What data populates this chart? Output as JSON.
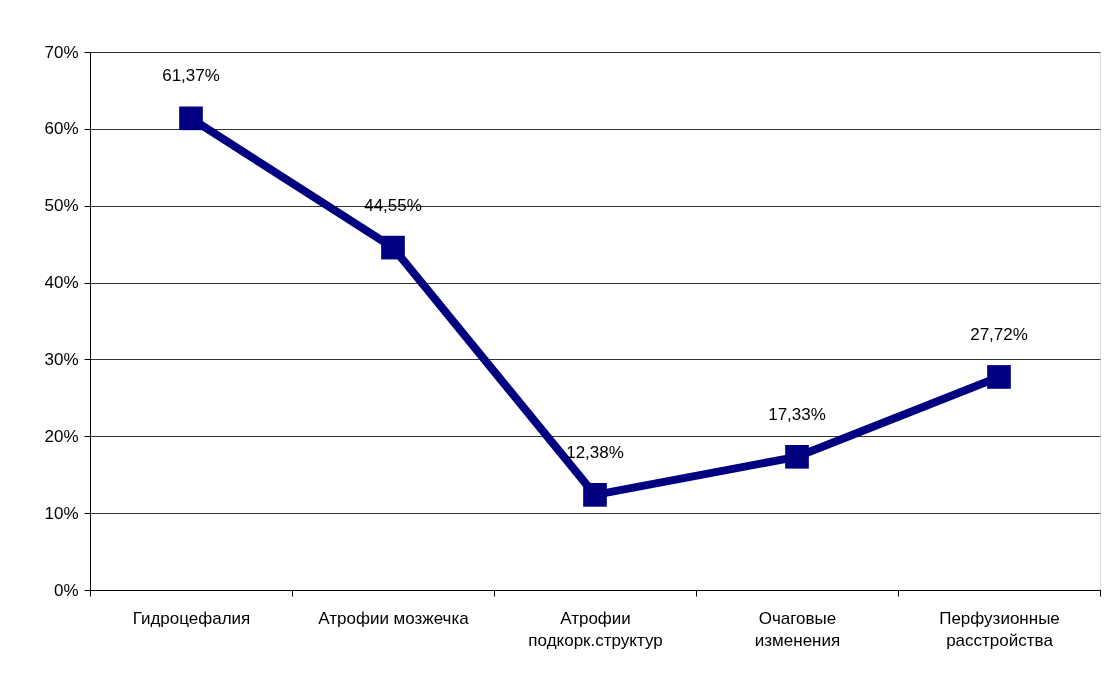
{
  "chart_data": {
    "type": "line",
    "categories": [
      "Гидроцефалия",
      "Атрофии мозжечка",
      "Атрофии подкорк.структур",
      "Очаговые изменения",
      "Перфузионные расстройства"
    ],
    "series": [
      {
        "color": "#000080",
        "values": [
          61.37,
          44.55,
          12.38,
          17.33,
          27.72
        ],
        "value_labels": [
          "61,37%",
          "44,55%",
          "12,38%",
          "17,33%",
          "27,72%"
        ]
      }
    ],
    "ylim": [
      0,
      70
    ],
    "yticks": [
      {
        "value": 0,
        "label": "0%"
      },
      {
        "value": 10,
        "label": "10%"
      },
      {
        "value": 20,
        "label": "20%"
      },
      {
        "value": 30,
        "label": "30%"
      },
      {
        "value": 40,
        "label": "40%"
      },
      {
        "value": 50,
        "label": "50%"
      },
      {
        "value": 60,
        "label": "60%"
      },
      {
        "value": 70,
        "label": "70%"
      }
    ],
    "grid": "y",
    "marker": "square",
    "line_style": "solid"
  }
}
